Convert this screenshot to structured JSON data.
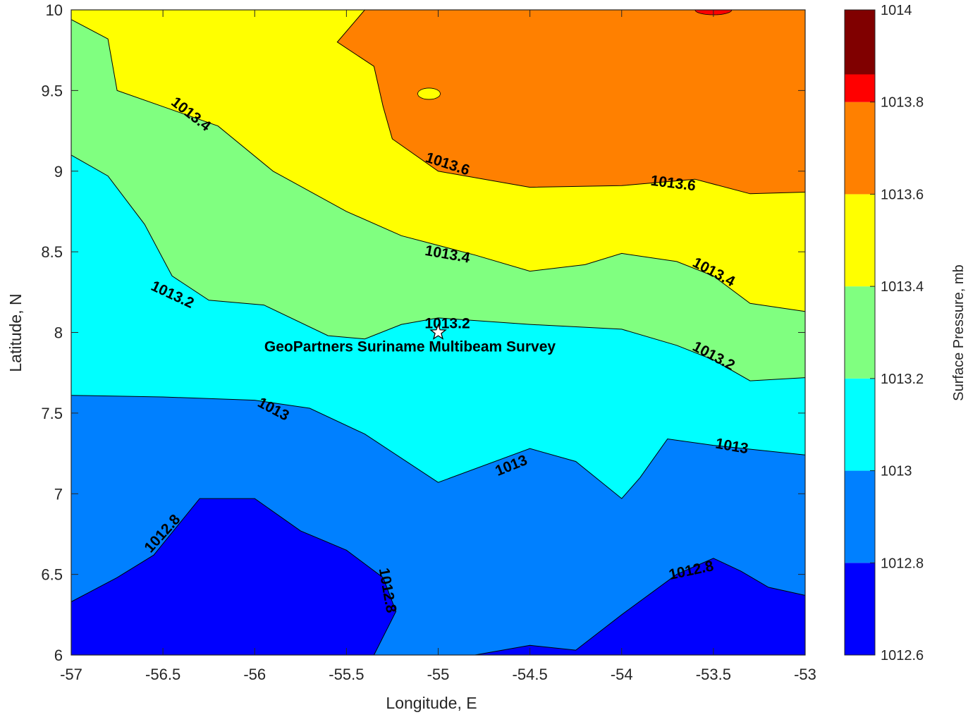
{
  "chart_data": {
    "type": "contour",
    "title": "",
    "xlabel": "Longitude, E",
    "ylabel": "Latitude, N",
    "xlim": [
      -57,
      -53
    ],
    "ylim": [
      6,
      10
    ],
    "xticks": [
      -57,
      -56.5,
      -56,
      -55.5,
      -55,
      -54.5,
      -54,
      -53.5,
      -53
    ],
    "yticks": [
      6,
      6.5,
      7,
      7.5,
      8,
      8.5,
      9,
      9.5,
      10
    ],
    "grid": false,
    "colorbar": {
      "label": "Surface Pressure, mb",
      "ticks": [
        1012.6,
        1012.8,
        1013,
        1013.2,
        1013.4,
        1013.6,
        1013.8,
        1014
      ],
      "range": [
        1012.6,
        1014
      ],
      "levels": [
        {
          "from": 1012.6,
          "to": 1012.8,
          "color": "#0000ff"
        },
        {
          "from": 1012.8,
          "to": 1013.0,
          "color": "#0080ff"
        },
        {
          "from": 1013.0,
          "to": 1013.2,
          "color": "#00ffff"
        },
        {
          "from": 1013.2,
          "to": 1013.4,
          "color": "#80ff80"
        },
        {
          "from": 1013.4,
          "to": 1013.6,
          "color": "#ffff00"
        },
        {
          "from": 1013.6,
          "to": 1013.8,
          "color": "#ff8000"
        },
        {
          "from": 1013.8,
          "to": 1014.0,
          "color": "#ff0000"
        },
        {
          "from": 1014.0,
          "to": 1014.2,
          "color": "#800000"
        }
      ]
    },
    "contours": [
      {
        "level": 1012.8,
        "points": [
          [
            -57,
            6.33
          ],
          [
            -56.75,
            6.48
          ],
          [
            -56.55,
            6.62
          ],
          [
            -56.3,
            6.97
          ],
          [
            -56.0,
            6.97
          ],
          [
            -55.75,
            6.77
          ],
          [
            -55.5,
            6.65
          ],
          [
            -55.3,
            6.48
          ],
          [
            -55.23,
            6.27
          ],
          [
            -55.35,
            6.0
          ]
        ]
      },
      {
        "level": 1012.8,
        "points": [
          [
            -54.8,
            6.0
          ],
          [
            -54.5,
            6.06
          ],
          [
            -54.25,
            6.03
          ],
          [
            -54.0,
            6.25
          ],
          [
            -53.7,
            6.5
          ],
          [
            -53.5,
            6.6
          ],
          [
            -53.35,
            6.52
          ],
          [
            -53.2,
            6.42
          ],
          [
            -53,
            6.37
          ]
        ]
      },
      {
        "level": 1013.0,
        "points": [
          [
            -57,
            7.61
          ],
          [
            -56.5,
            7.6
          ],
          [
            -56.0,
            7.58
          ],
          [
            -55.7,
            7.53
          ],
          [
            -55.4,
            7.37
          ],
          [
            -55.0,
            7.07
          ],
          [
            -54.5,
            7.28
          ],
          [
            -54.25,
            7.2
          ],
          [
            -54.0,
            6.97
          ],
          [
            -53.9,
            7.1
          ],
          [
            -53.75,
            7.34
          ],
          [
            -53.5,
            7.3
          ],
          [
            -53,
            7.24
          ]
        ]
      },
      {
        "level": 1013.2,
        "points": [
          [
            -57,
            9.1
          ],
          [
            -56.8,
            8.97
          ],
          [
            -56.6,
            8.67
          ],
          [
            -56.45,
            8.35
          ],
          [
            -56.25,
            8.2
          ],
          [
            -55.95,
            8.17
          ],
          [
            -55.6,
            7.98
          ],
          [
            -55.4,
            7.96
          ],
          [
            -55.2,
            8.05
          ],
          [
            -55.0,
            8.09
          ],
          [
            -54.5,
            8.05
          ],
          [
            -54.0,
            8.02
          ],
          [
            -53.7,
            7.92
          ],
          [
            -53.5,
            7.83
          ],
          [
            -53.3,
            7.7
          ],
          [
            -53,
            7.72
          ]
        ]
      },
      {
        "level": 1013.4,
        "points": [
          [
            -57,
            9.94
          ],
          [
            -56.8,
            9.82
          ],
          [
            -56.75,
            9.5
          ],
          [
            -56.5,
            9.4
          ],
          [
            -56.2,
            9.28
          ],
          [
            -55.9,
            9.0
          ],
          [
            -55.5,
            8.75
          ],
          [
            -55.2,
            8.6
          ],
          [
            -54.8,
            8.48
          ],
          [
            -54.5,
            8.38
          ],
          [
            -54.2,
            8.42
          ],
          [
            -54.0,
            8.49
          ],
          [
            -53.7,
            8.44
          ],
          [
            -53.5,
            8.35
          ],
          [
            -53.3,
            8.18
          ],
          [
            -53,
            8.13
          ]
        ]
      },
      {
        "level": 1013.6,
        "points": [
          [
            -55.4,
            10.0
          ],
          [
            -55.55,
            9.8
          ],
          [
            -55.35,
            9.65
          ],
          [
            -55.3,
            9.4
          ],
          [
            -55.25,
            9.2
          ],
          [
            -55.0,
            9.0
          ],
          [
            -54.5,
            8.9
          ],
          [
            -54.0,
            8.91
          ],
          [
            -53.6,
            8.95
          ],
          [
            -53.3,
            8.86
          ],
          [
            -53,
            8.87
          ]
        ]
      }
    ],
    "contour_labels": [
      {
        "text": "1013.4",
        "x": -56.35,
        "y": 9.35,
        "angle": 38
      },
      {
        "text": "1013.6",
        "x": -54.95,
        "y": 9.04,
        "angle": 18
      },
      {
        "text": "1013.6",
        "x": -53.72,
        "y": 8.92,
        "angle": 7
      },
      {
        "text": "1013.4",
        "x": -54.95,
        "y": 8.48,
        "angle": 10
      },
      {
        "text": "1013.4",
        "x": -53.5,
        "y": 8.37,
        "angle": 28
      },
      {
        "text": "1013.2",
        "x": -56.45,
        "y": 8.23,
        "angle": 25
      },
      {
        "text": "1013.2",
        "x": -54.95,
        "y": 8.05,
        "angle": 0
      },
      {
        "text": "1013.2",
        "x": -53.5,
        "y": 7.85,
        "angle": 28
      },
      {
        "text": "1013",
        "x": -55.9,
        "y": 7.52,
        "angle": 28
      },
      {
        "text": "1013",
        "x": -54.6,
        "y": 7.17,
        "angle": -22
      },
      {
        "text": "1013",
        "x": -53.4,
        "y": 7.29,
        "angle": 10
      },
      {
        "text": "1012.8",
        "x": -56.5,
        "y": 6.75,
        "angle": -48
      },
      {
        "text": "1012.8",
        "x": -55.28,
        "y": 6.4,
        "angle": 80
      },
      {
        "text": "1012.8",
        "x": -53.62,
        "y": 6.52,
        "angle": -12
      }
    ],
    "markers": [
      {
        "x": -55,
        "y": 8.0,
        "symbol": "star",
        "label": "GeoPartners Suriname Multibeam Survey"
      }
    ]
  }
}
